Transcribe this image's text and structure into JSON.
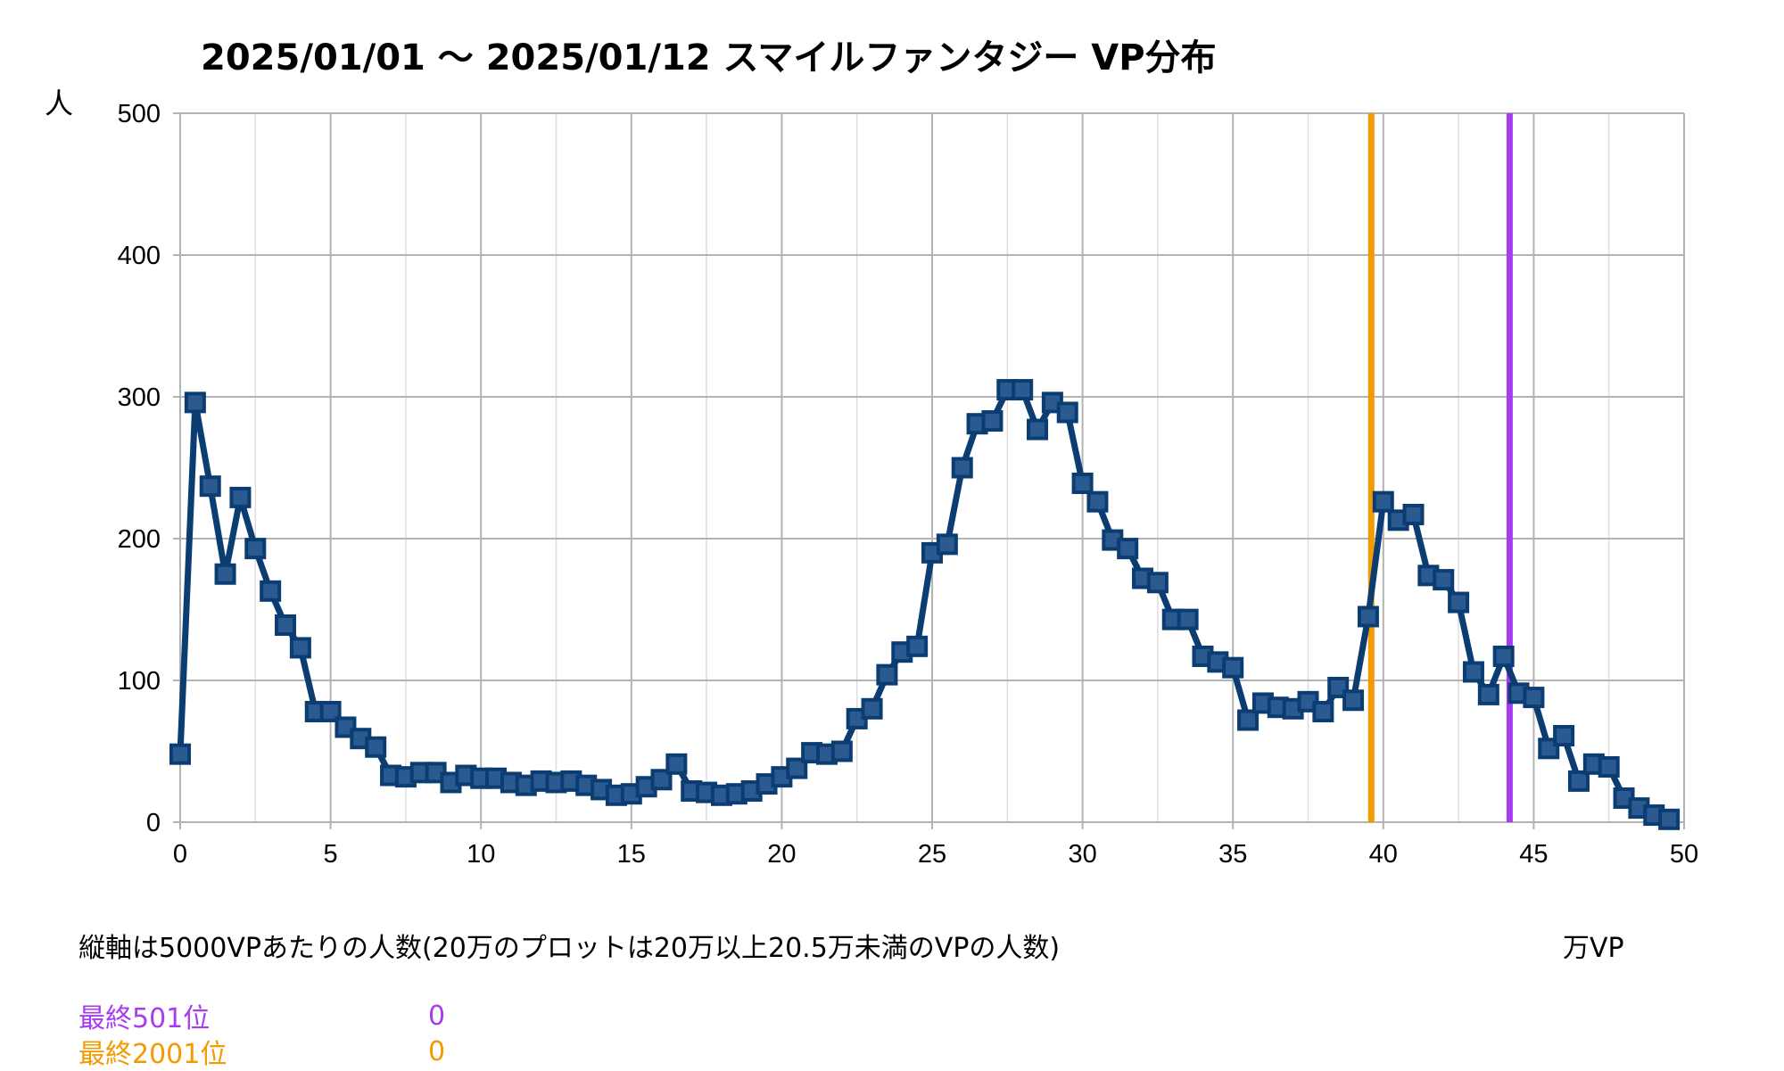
{
  "chart_data": {
    "type": "line",
    "title": "2025/01/01 〜 2025/01/12 スマイルファンタジー VP分布",
    "ylabel": "人",
    "xlabel": "万VP",
    "note": "縦軸は5000VPあたりの人数(20万のプロットは20万以上20.5万未満のVPの人数)",
    "xlim": [
      0,
      50
    ],
    "ylim": [
      0,
      500
    ],
    "x_ticks": [
      "0",
      "5",
      "10",
      "15",
      "20",
      "25",
      "30",
      "35",
      "40",
      "45",
      "50"
    ],
    "y_ticks": [
      "0",
      "100",
      "200",
      "300",
      "400",
      "500"
    ],
    "grid": true,
    "series": [
      {
        "color": "#0b3d73",
        "marker": "square",
        "x": [
          0,
          0.5,
          1,
          1.5,
          2,
          2.5,
          3,
          3.5,
          4,
          4.5,
          5,
          5.5,
          6,
          6.5,
          7,
          7.5,
          8,
          8.5,
          9,
          9.5,
          10,
          10.5,
          11,
          11.5,
          12,
          12.5,
          13,
          13.5,
          14,
          14.5,
          15,
          15.5,
          16,
          16.5,
          17,
          17.5,
          18,
          18.5,
          19,
          19.5,
          20,
          20.5,
          21,
          21.5,
          22,
          22.5,
          23,
          23.5,
          24,
          24.5,
          25,
          25.5,
          26,
          26.5,
          27,
          27.5,
          28,
          28.5,
          29,
          29.5,
          30,
          30.5,
          31,
          31.5,
          32,
          32.5,
          33,
          33.5,
          34,
          34.5,
          35,
          35.5,
          36,
          36.5,
          37,
          37.5,
          38,
          38.5,
          39,
          39.5,
          40,
          40.5,
          41,
          41.5,
          42,
          42.5,
          43,
          43.5,
          44,
          44.5,
          45,
          45.5,
          46,
          46.5,
          47,
          47.5,
          48,
          48.5,
          49,
          49.5
        ],
        "y": [
          48,
          296,
          237,
          175,
          229,
          193,
          163,
          139,
          123,
          78,
          78,
          67,
          59,
          53,
          33,
          32,
          35,
          35,
          28,
          33,
          31,
          31,
          28,
          26,
          29,
          28,
          29,
          26,
          23,
          19,
          20,
          25,
          30,
          41,
          22,
          21,
          19,
          20,
          22,
          27,
          32,
          38,
          49,
          48,
          50,
          73,
          80,
          104,
          120,
          124,
          190,
          196,
          250,
          281,
          283,
          305,
          305,
          277,
          296,
          289,
          239,
          226,
          199,
          193,
          172,
          169,
          143,
          143,
          117,
          113,
          109,
          72,
          84,
          81,
          80,
          85,
          78,
          95,
          86,
          145,
          226,
          213,
          217,
          174,
          171,
          155,
          106,
          90,
          117,
          91,
          88,
          52,
          61,
          29,
          41,
          39,
          17,
          10,
          5,
          2
        ]
      }
    ],
    "vlines": [
      {
        "x": 39.6,
        "color": "#f29a00"
      },
      {
        "x": 44.2,
        "color": "#a63cf0"
      }
    ]
  },
  "legend": {
    "items": [
      {
        "label": "最終501位",
        "value": "0",
        "color": "#a63cf0"
      },
      {
        "label": "最終2001位",
        "value": "0",
        "color": "#f29a00"
      }
    ]
  }
}
